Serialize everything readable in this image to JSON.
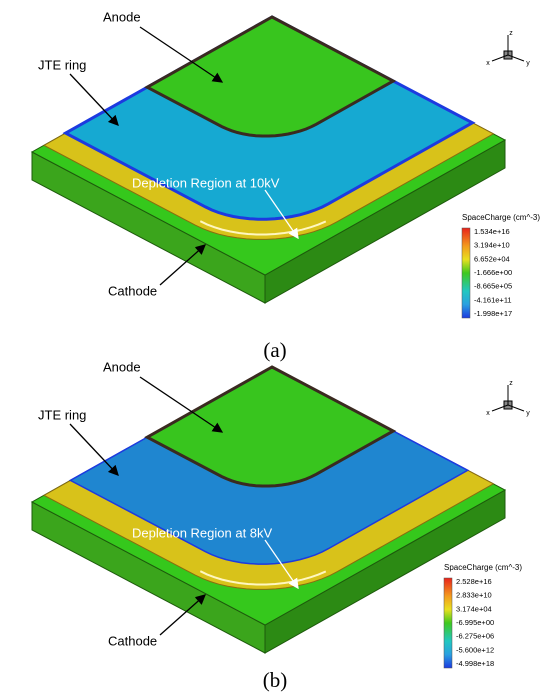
{
  "panels": [
    {
      "anode": "Anode",
      "jte_ring": "JTE ring",
      "cathode": "Cathode",
      "depletion": "Depletion Region at 10kV",
      "legend": {
        "title": "SpaceCharge (cm^-3)",
        "labels": [
          "1.534e+16",
          "3.194e+10",
          "6.652e+04",
          "-1.666e+00",
          "-8.665e+05",
          "-4.161e+11",
          "-1.998e+17"
        ]
      },
      "axes": [
        "z",
        "x",
        "y"
      ],
      "caption": "(a)"
    },
    {
      "anode": "Anode",
      "jte_ring": "JTE ring",
      "cathode": "Cathode",
      "depletion": "Depletion Region at 8kV",
      "legend": {
        "title": "SpaceCharge (cm^-3)",
        "labels": [
          "2.528e+16",
          "2.833e+10",
          "3.174e+04",
          "-6.995e+00",
          "-6.275e+06",
          "-5.600e+12",
          "-4.998e+18"
        ]
      },
      "axes": [
        "z",
        "x",
        "y"
      ],
      "caption": "(b)"
    }
  ]
}
